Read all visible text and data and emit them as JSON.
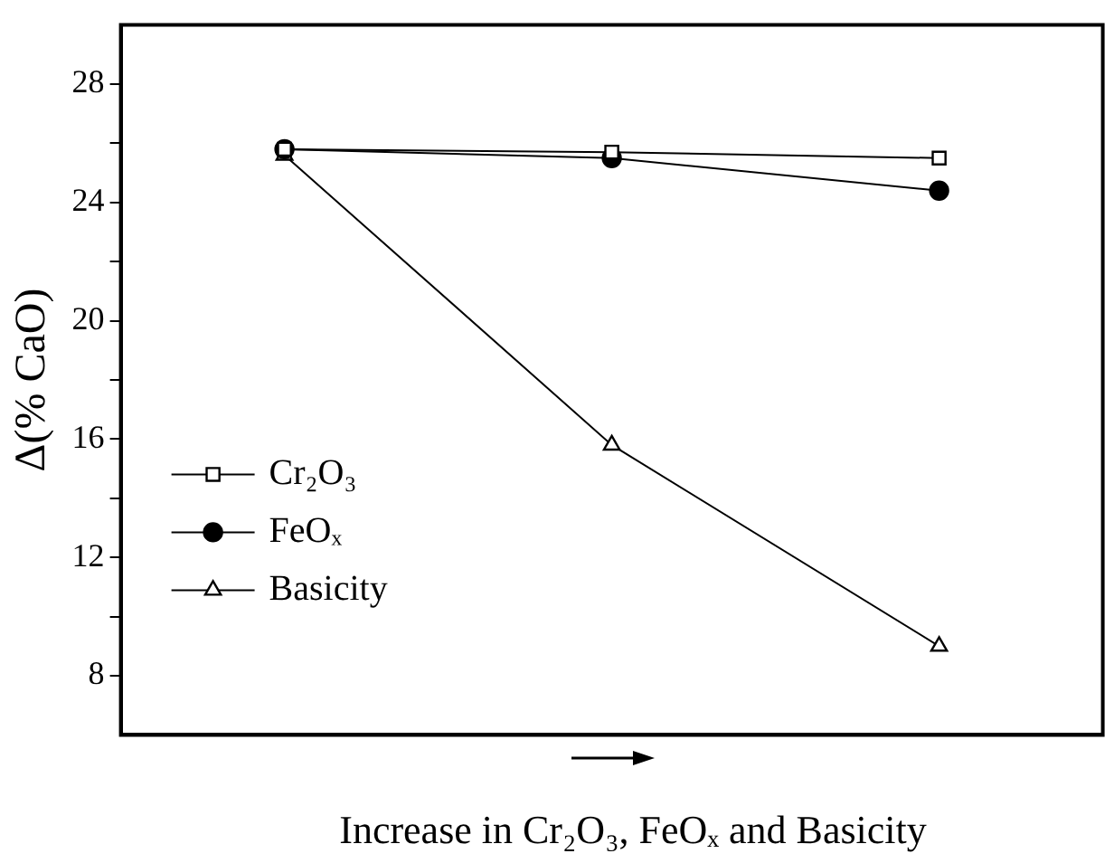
{
  "chart_data": {
    "type": "line",
    "xlabel": "Increase in Cr₂O₃, FeOₓ and Basicity",
    "ylabel": "Δ(% CaO)",
    "categories": [
      null,
      null,
      null
    ],
    "series": [
      {
        "name": "Cr₂O₃",
        "color": "#000000",
        "marker": "square",
        "values": [
          25.8,
          25.7,
          25.5
        ]
      },
      {
        "name": "FeOₓ",
        "color": "#000000",
        "marker": "circle",
        "values": [
          25.8,
          25.5,
          24.4
        ]
      },
      {
        "name": "Basicity",
        "color": "#000000",
        "marker": "triangle",
        "values": [
          25.6,
          15.8,
          9.0
        ]
      }
    ],
    "ylim": [
      6,
      30
    ],
    "yticks": [
      8,
      {
        "value": 10,
        "label": null
      },
      12,
      {
        "value": 14,
        "label": null
      },
      16,
      {
        "value": 18,
        "label": null
      },
      20,
      {
        "value": 22,
        "label": null
      },
      24,
      {
        "value": 26,
        "label": null
      },
      28
    ],
    "grid": false,
    "legend": "bottom left"
  }
}
